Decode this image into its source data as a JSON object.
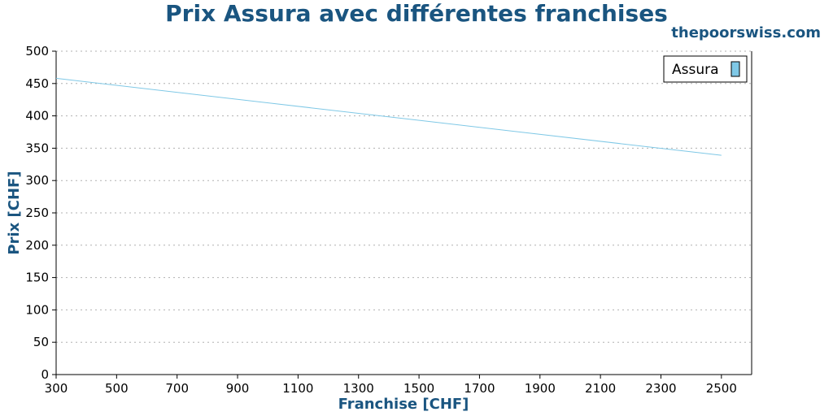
{
  "title": "Prix Assura avec différentes franchises",
  "brand": "thepoorswiss.com",
  "colors": {
    "title": "#1a5580",
    "series": "#7fc8e6",
    "grid": "#b0b0b0"
  },
  "chart_data": {
    "type": "line",
    "title": "Prix Assura avec différentes franchises",
    "xlabel": "Franchise [CHF]",
    "ylabel": "Prix [CHF]",
    "xlim": [
      300,
      2600
    ],
    "ylim": [
      0,
      500
    ],
    "xticks": [
      300,
      500,
      700,
      900,
      1100,
      1300,
      1500,
      1700,
      1900,
      2100,
      2300,
      2500
    ],
    "yticks": [
      0,
      50,
      100,
      150,
      200,
      250,
      300,
      350,
      400,
      450,
      500
    ],
    "grid": "horizontal-dotted",
    "legend_position": "top-right",
    "series": [
      {
        "name": "Assura",
        "color": "#7fc8e6",
        "x": [
          300,
          2500
        ],
        "y": [
          458,
          339
        ]
      }
    ]
  }
}
